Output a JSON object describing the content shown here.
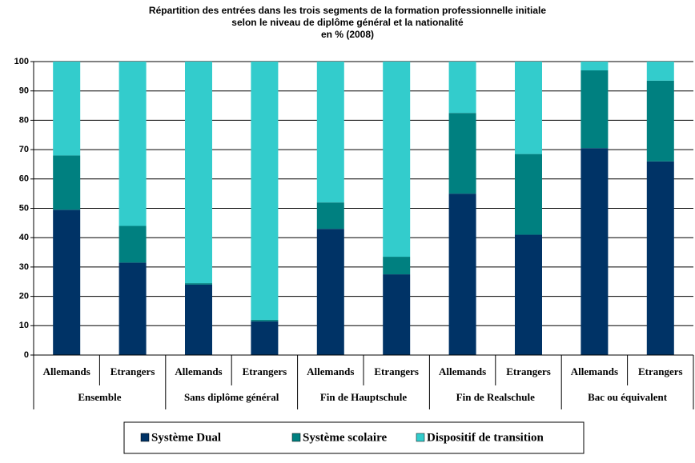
{
  "chart_data": {
    "type": "stacked_bar",
    "title": [
      "Répartition des entrées dans les trois segments de la formation professionnelle initiale",
      "selon le niveau de diplôme général et la nationalité",
      "en % (2008)"
    ],
    "categories": [
      "Allemands",
      "Etrangers",
      "Allemands",
      "Etrangers",
      "Allemands",
      "Etrangers",
      "Allemands",
      "Etrangers",
      "Allemands",
      "Etrangers"
    ],
    "groups": [
      "Ensemble",
      "Sans diplôme général",
      "Fin de Hauptschule",
      "Fin de Realschule",
      "Bac ou équivalent"
    ],
    "series": [
      {
        "name": "Système Dual",
        "color": "#003366",
        "values": [
          49.5,
          31.5,
          24,
          11.5,
          43,
          27.5,
          55,
          41,
          70.5,
          66
        ]
      },
      {
        "name": "Système scolaire",
        "color": "#008080",
        "values": [
          18.5,
          12.5,
          0.5,
          0.5,
          9,
          6,
          27.5,
          27.5,
          26.5,
          27.5
        ]
      },
      {
        "name": "Dispositif de transition",
        "color": "#33cccc",
        "values": [
          32,
          56,
          75.5,
          88,
          48,
          66.5,
          17.5,
          31.5,
          3,
          6.5
        ]
      }
    ],
    "ylim": [
      0,
      100
    ],
    "yticks": [
      0,
      10,
      20,
      30,
      40,
      50,
      60,
      70,
      80,
      90,
      100
    ],
    "grid": true,
    "legend": "bottom"
  }
}
